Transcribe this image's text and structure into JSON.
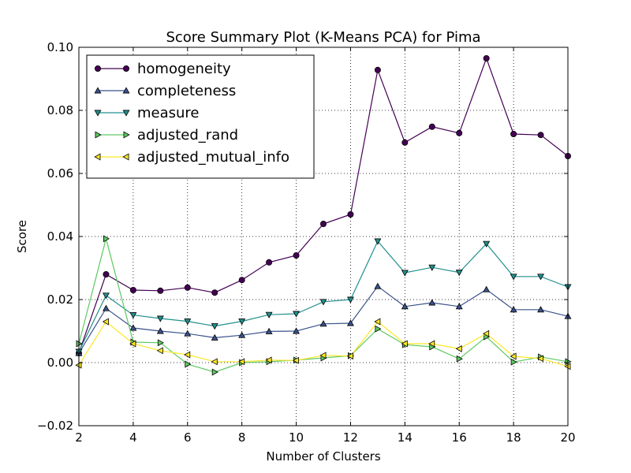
{
  "chart_data": {
    "type": "line",
    "title": "Score Summary Plot (K-Means PCA) for Pima",
    "xlabel": "Number of Clusters",
    "ylabel": "Score",
    "xlim": [
      2,
      20
    ],
    "ylim": [
      -0.02,
      0.1
    ],
    "xticks": [
      2,
      4,
      6,
      8,
      10,
      12,
      14,
      16,
      18,
      20
    ],
    "yticks": [
      -0.02,
      0.0,
      0.02,
      0.04,
      0.06,
      0.08,
      0.1
    ],
    "ytick_labels": [
      "−0.02",
      "0.00",
      "0.02",
      "0.04",
      "0.06",
      "0.08",
      "0.10"
    ],
    "grid": true,
    "legend_position": "upper-left",
    "x": [
      2,
      3,
      4,
      5,
      6,
      7,
      8,
      9,
      10,
      11,
      12,
      13,
      14,
      15,
      16,
      17,
      18,
      19,
      20
    ],
    "series": [
      {
        "name": "homogeneity",
        "marker": "circle",
        "color": "#440154",
        "values": [
          0.003,
          0.028,
          0.023,
          0.0228,
          0.0238,
          0.0222,
          0.0262,
          0.0318,
          0.034,
          0.044,
          0.047,
          0.0928,
          0.0698,
          0.0748,
          0.0728,
          0.0965,
          0.0725,
          0.0722,
          0.0655
        ]
      },
      {
        "name": "completeness",
        "marker": "triangle-up",
        "color": "#3b528b",
        "values": [
          0.003,
          0.0172,
          0.011,
          0.01,
          0.0092,
          0.0079,
          0.0087,
          0.0099,
          0.01,
          0.0123,
          0.0125,
          0.0242,
          0.0178,
          0.019,
          0.0178,
          0.0232,
          0.0168,
          0.0168,
          0.0147
        ]
      },
      {
        "name": "measure",
        "marker": "triangle-down",
        "color": "#21908d",
        "values": [
          0.0035,
          0.0213,
          0.0151,
          0.014,
          0.0131,
          0.0116,
          0.0131,
          0.0152,
          0.0155,
          0.0193,
          0.02,
          0.0385,
          0.0285,
          0.0302,
          0.0286,
          0.0377,
          0.0273,
          0.0273,
          0.024
        ]
      },
      {
        "name": "adjusted_rand",
        "marker": "triangle-right",
        "color": "#5dc963",
        "values": [
          0.006,
          0.0393,
          0.0065,
          0.0063,
          -0.0005,
          -0.003,
          0.0,
          0.0003,
          0.0008,
          0.0015,
          0.0022,
          0.0107,
          0.0057,
          0.005,
          0.0012,
          0.0082,
          0.0002,
          0.0018,
          0.0003
        ]
      },
      {
        "name": "adjusted_mutual_info",
        "marker": "triangle-left",
        "color": "#fde725",
        "values": [
          -0.0008,
          0.013,
          0.006,
          0.0038,
          0.0025,
          0.0003,
          0.0003,
          0.0008,
          0.0007,
          0.0023,
          0.0021,
          0.013,
          0.006,
          0.006,
          0.0044,
          0.0092,
          0.002,
          0.0013,
          -0.0012
        ]
      }
    ]
  }
}
